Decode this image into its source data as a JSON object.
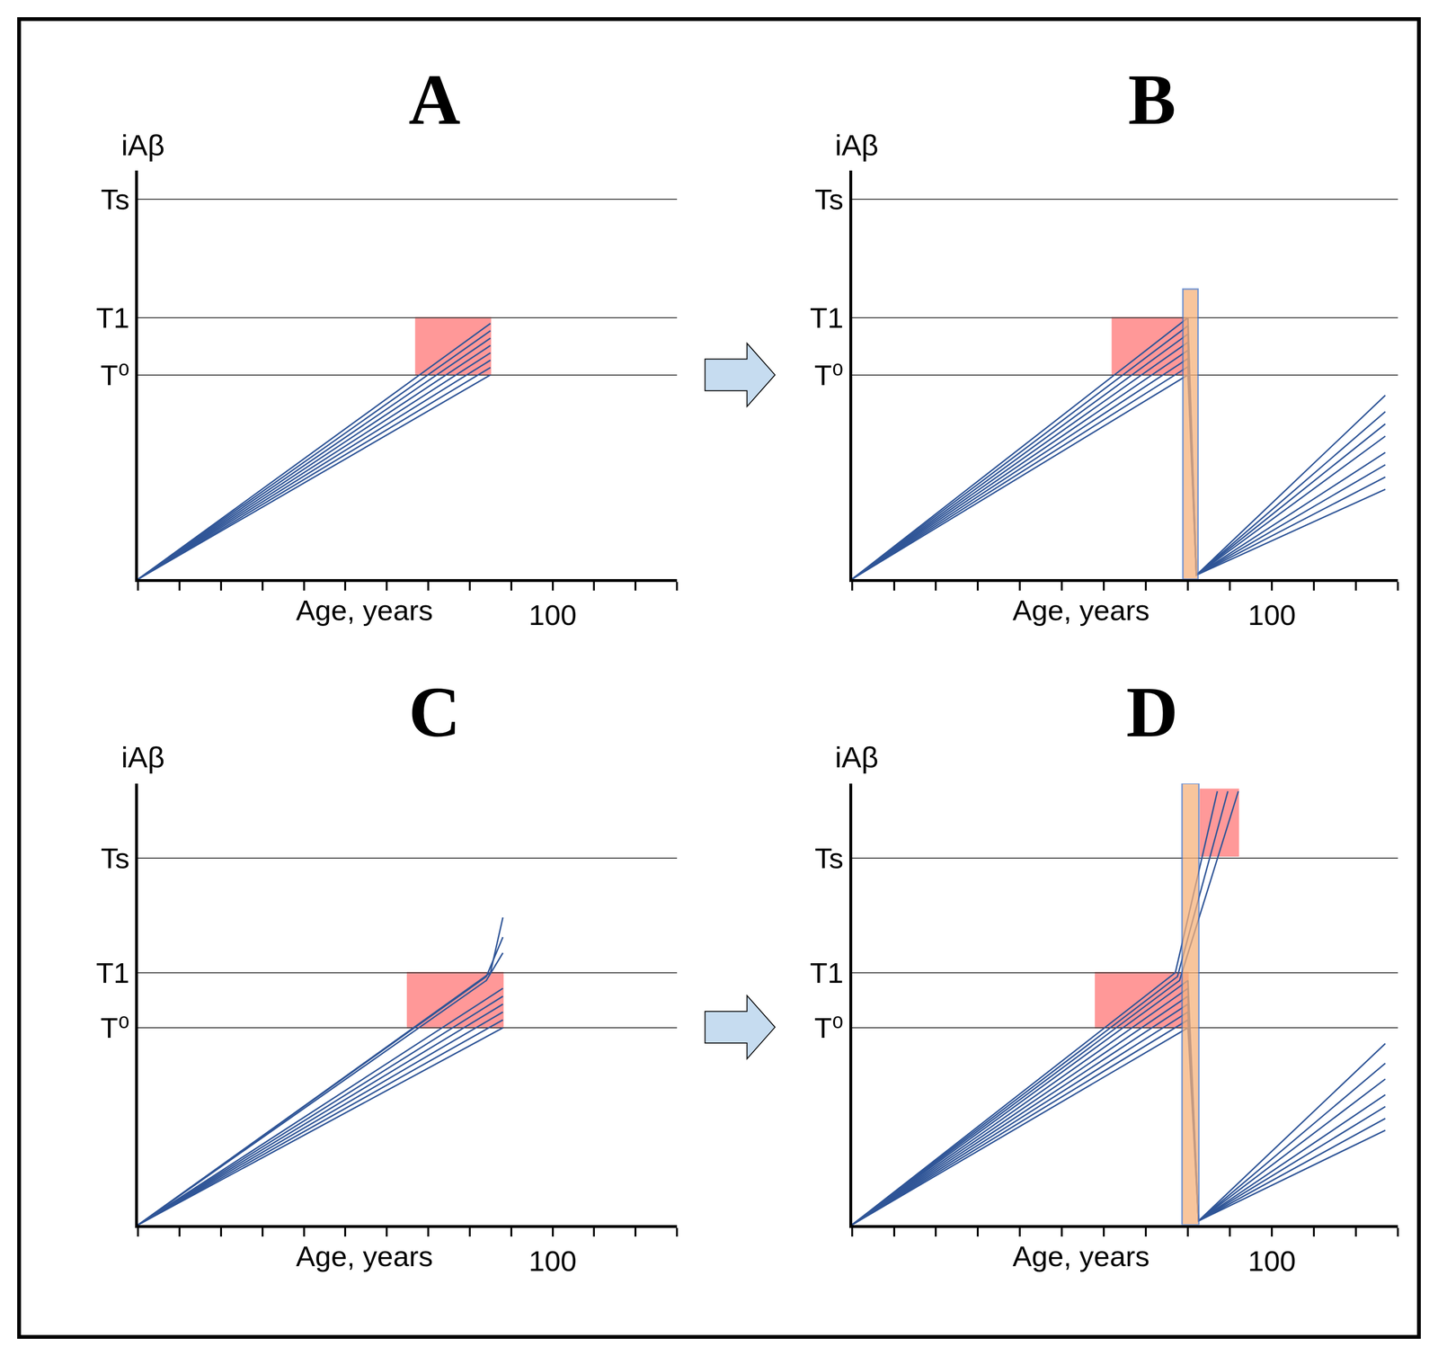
{
  "chart_data": [
    {
      "type": "line",
      "title": "A",
      "y_label": "iAβ",
      "x_label": "Age, years",
      "xlim": [
        0,
        130
      ],
      "xticks": [
        100
      ],
      "ylim": [
        0,
        100
      ],
      "yticks": [
        {
          "value": 50,
          "label": "T⁰"
        },
        {
          "value": 64,
          "label": "T1"
        },
        {
          "value": 93,
          "label": "Ts"
        }
      ],
      "grid": "y",
      "color": "#2f5597",
      "regions": [
        {
          "x": [
            67,
            85
          ],
          "y": [
            50,
            64
          ],
          "color": "#ff0000"
        }
      ],
      "series": [
        {
          "x": [
            0,
            85
          ],
          "values": [
            0,
            50
          ]
        },
        {
          "x": [
            0,
            85
          ],
          "values": [
            0,
            51.8
          ]
        },
        {
          "x": [
            0,
            85
          ],
          "values": [
            0,
            53.6
          ]
        },
        {
          "x": [
            0,
            85
          ],
          "values": [
            0,
            55.4
          ]
        },
        {
          "x": [
            0,
            85
          ],
          "values": [
            0,
            57.2
          ]
        },
        {
          "x": [
            0,
            85
          ],
          "values": [
            0,
            59
          ]
        },
        {
          "x": [
            0,
            85
          ],
          "values": [
            0,
            60.8
          ]
        },
        {
          "x": [
            0,
            85
          ],
          "values": [
            0,
            62.6
          ]
        }
      ]
    },
    {
      "type": "line",
      "title": "B",
      "y_label": "iAβ",
      "x_label": "Age, years",
      "xlim": [
        0,
        130
      ],
      "xticks": [
        100
      ],
      "ylim": [
        0,
        100
      ],
      "yticks": [
        {
          "value": 50,
          "label": "T⁰"
        },
        {
          "value": 64,
          "label": "T1"
        },
        {
          "value": 93,
          "label": "Ts"
        }
      ],
      "grid": "y",
      "color": "#2f5597",
      "regions": [
        {
          "x": [
            62,
            80
          ],
          "y": [
            50,
            64
          ],
          "color": "#ff0000"
        }
      ],
      "bands": [
        {
          "x": [
            78.8,
            82.4
          ],
          "y": [
            0,
            71
          ],
          "color": "#f6b27c"
        }
      ],
      "series": [
        {
          "x": [
            0,
            80,
            82,
            127
          ],
          "values": [
            0,
            50,
            1,
            22
          ]
        },
        {
          "x": [
            0,
            80,
            82,
            127
          ],
          "values": [
            0,
            52,
            1,
            25
          ]
        },
        {
          "x": [
            0,
            80,
            82,
            127
          ],
          "values": [
            0,
            54,
            1,
            28
          ]
        },
        {
          "x": [
            0,
            80,
            82,
            127
          ],
          "values": [
            0,
            56,
            1,
            31
          ]
        },
        {
          "x": [
            0,
            80,
            82,
            127
          ],
          "values": [
            0,
            58,
            1,
            35
          ]
        },
        {
          "x": [
            0,
            80,
            82,
            127
          ],
          "values": [
            0,
            60,
            1,
            38
          ]
        },
        {
          "x": [
            0,
            80,
            82,
            127
          ],
          "values": [
            0,
            62,
            1,
            41
          ]
        },
        {
          "x": [
            0,
            80,
            82,
            127
          ],
          "values": [
            0,
            64,
            1,
            45
          ]
        }
      ]
    },
    {
      "type": "line",
      "title": "C",
      "y_label": "iAβ",
      "x_label": "Age, years",
      "xlim": [
        0,
        130
      ],
      "xticks": [
        100
      ],
      "ylim": [
        0,
        112
      ],
      "yticks": [
        {
          "value": 50,
          "label": "T⁰"
        },
        {
          "value": 64,
          "label": "T1"
        },
        {
          "value": 93,
          "label": "Ts"
        }
      ],
      "grid": "y",
      "color": "#2f5597",
      "regions": [
        {
          "x": [
            65,
            88
          ],
          "y": [
            50,
            64
          ],
          "color": "#ff0000"
        }
      ],
      "series": [
        {
          "x": [
            0,
            88
          ],
          "values": [
            0,
            50
          ]
        },
        {
          "x": [
            0,
            88
          ],
          "values": [
            0,
            52
          ]
        },
        {
          "x": [
            0,
            88
          ],
          "values": [
            0,
            54
          ]
        },
        {
          "x": [
            0,
            88
          ],
          "values": [
            0,
            56
          ]
        },
        {
          "x": [
            0,
            88
          ],
          "values": [
            0,
            58
          ]
        },
        {
          "x": [
            0,
            88
          ],
          "values": [
            0,
            60
          ]
        },
        {
          "x": [
            0,
            84,
            88
          ],
          "values": [
            0,
            62,
            69
          ]
        },
        {
          "x": [
            0,
            84,
            88
          ],
          "values": [
            0,
            63,
            73
          ]
        },
        {
          "x": [
            0,
            85,
            88
          ],
          "values": [
            0,
            64,
            78
          ]
        }
      ]
    },
    {
      "type": "line",
      "title": "D",
      "y_label": "iAβ",
      "x_label": "Age, years",
      "xlim": [
        0,
        130
      ],
      "xticks": [
        100
      ],
      "ylim": [
        0,
        112
      ],
      "yticks": [
        {
          "value": 50,
          "label": "T⁰"
        },
        {
          "value": 64,
          "label": "T1"
        },
        {
          "value": 93,
          "label": "Ts"
        }
      ],
      "grid": "y",
      "color": "#2f5597",
      "regions": [
        {
          "x": [
            58,
            80
          ],
          "y": [
            50,
            64
          ],
          "color": "#ff0000"
        },
        {
          "x": [
            83,
            92
          ],
          "y": [
            93.6,
            110.5
          ],
          "color": "#ff0000"
        }
      ],
      "bands": [
        {
          "x": [
            78.6,
            82.6
          ],
          "y": [
            0,
            112
          ],
          "color": "#f6b27c"
        }
      ],
      "series": [
        {
          "x": [
            0,
            80,
            82.5,
            127
          ],
          "values": [
            0,
            50,
            1,
            24
          ]
        },
        {
          "x": [
            0,
            80,
            82.5,
            127
          ],
          "values": [
            0,
            52,
            1,
            27
          ]
        },
        {
          "x": [
            0,
            80,
            82.5,
            127
          ],
          "values": [
            0,
            54,
            1,
            30
          ]
        },
        {
          "x": [
            0,
            80,
            82.5,
            127
          ],
          "values": [
            0,
            56,
            1,
            33
          ]
        },
        {
          "x": [
            0,
            80,
            82.5,
            127
          ],
          "values": [
            0,
            58,
            1,
            37
          ]
        },
        {
          "x": [
            0,
            80,
            82.5,
            127
          ],
          "values": [
            0,
            60,
            1,
            41
          ]
        },
        {
          "x": [
            0,
            80,
            82.5,
            127
          ],
          "values": [
            0,
            62,
            1,
            46
          ]
        },
        {
          "x": [
            0,
            77,
            87
          ],
          "values": [
            0,
            64,
            110
          ]
        },
        {
          "x": [
            0,
            77.5,
            89.5
          ],
          "values": [
            0,
            63,
            110
          ]
        },
        {
          "x": [
            0,
            78,
            92
          ],
          "values": [
            0,
            62,
            110
          ]
        }
      ]
    }
  ]
}
